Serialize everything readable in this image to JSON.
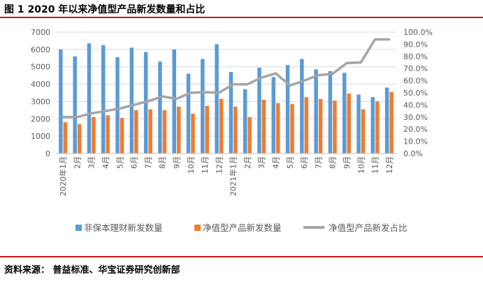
{
  "header": {
    "title": "图 1    2020 年以来净值型产品新发数量和占比"
  },
  "footer": {
    "source": "资料来源：   普益标准、华宝证券研究创新部"
  },
  "colors": {
    "rule": "#c8161d",
    "series_blue": "#5b9bd5",
    "series_orange": "#ed7d31",
    "series_gray": "#a5a5a5",
    "gridline": "#d9d9d9"
  },
  "chart_data": {
    "type": "bar",
    "title": "",
    "categories": [
      "2020年1月",
      "2月",
      "3月",
      "4月",
      "5月",
      "6月",
      "7月",
      "8月",
      "9月",
      "10月",
      "11月",
      "12月",
      "2021年1月",
      "2月",
      "3月",
      "4月",
      "5月",
      "6月",
      "7月",
      "8月",
      "9月",
      "10月",
      "11月",
      "12月"
    ],
    "left_axis": {
      "range": [
        0,
        7000
      ],
      "ticks": [
        "0",
        "1000",
        "2000",
        "3000",
        "4000",
        "5000",
        "6000",
        "7000"
      ]
    },
    "right_axis": {
      "range": [
        0,
        100
      ],
      "ticks": [
        "0.0%",
        "10.0%",
        "20.0%",
        "30.0%",
        "40.0%",
        "50.0%",
        "60.0%",
        "70.0%",
        "80.0%",
        "90.0%",
        "100.0%"
      ]
    },
    "series": [
      {
        "name": "非保本理财新发数量",
        "type": "bar",
        "axis": "left",
        "color": "#5b9bd5",
        "values": [
          6000,
          5600,
          6350,
          6250,
          5550,
          6100,
          5850,
          5300,
          6000,
          4600,
          5450,
          6300,
          4700,
          3700,
          4950,
          4400,
          5100,
          5450,
          4850,
          4750,
          4650,
          3400,
          3250,
          3800
        ]
      },
      {
        "name": "净值型产品新发数量",
        "type": "bar",
        "axis": "left",
        "color": "#ed7d31",
        "values": [
          1800,
          1700,
          2100,
          2200,
          2050,
          2500,
          2550,
          2500,
          2700,
          2300,
          2750,
          3150,
          2700,
          2100,
          3100,
          2900,
          2850,
          3250,
          3150,
          3050,
          3450,
          2550,
          3000,
          3550
        ]
      },
      {
        "name": "净值型产品新发占比",
        "type": "line",
        "axis": "right",
        "color": "#a5a5a5",
        "values": [
          30.0,
          30.0,
          33.0,
          35.0,
          37.0,
          40.0,
          43.0,
          47.0,
          45.0,
          50.0,
          50.5,
          50.0,
          57.0,
          57.0,
          62.5,
          66.0,
          56.0,
          60.0,
          64.5,
          65.5,
          74.5,
          75.0,
          94.0,
          94.0
        ]
      }
    ],
    "legend": [
      "非保本理财新发数量",
      "净值型产品新发数量",
      "净值型产品新发占比"
    ],
    "legend_position": "bottom"
  }
}
